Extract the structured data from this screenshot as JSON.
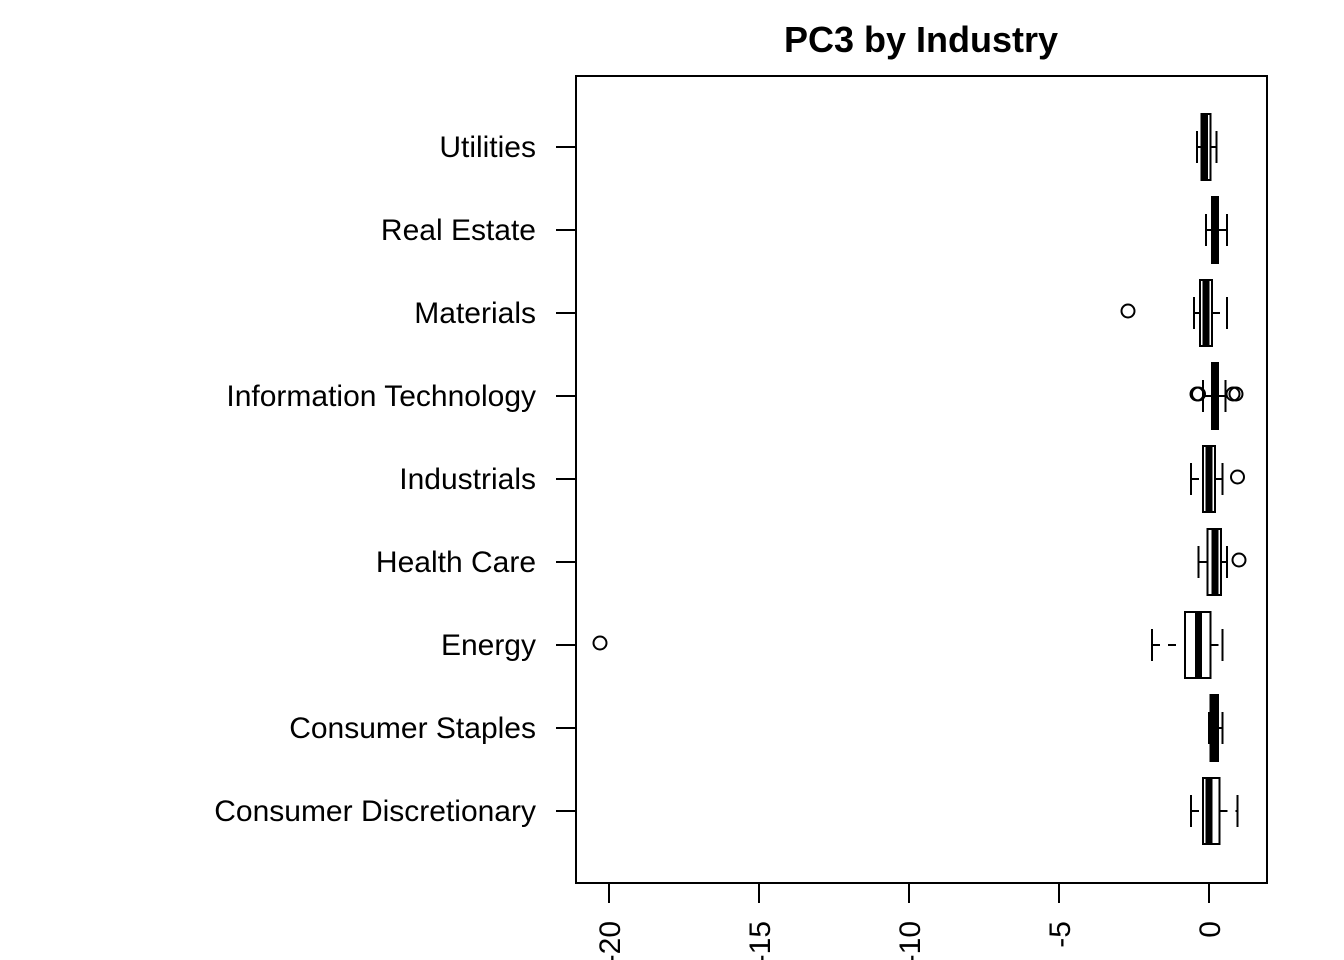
{
  "chart_data": {
    "type": "boxplot",
    "title": "PC3 by Industry",
    "xlabel": "",
    "ylabel": "",
    "orientation": "horizontal",
    "xlim": [
      -21.2,
      2.0
    ],
    "x_ticks": [
      -20,
      -15,
      -10,
      -5,
      0
    ],
    "x_tick_labels": [
      "-20",
      "-15",
      "-10",
      "-5",
      "0"
    ],
    "grid": false,
    "categories": [
      "Consumer Discretionary",
      "Consumer Staples",
      "Energy",
      "Health Care",
      "Industrials",
      "Information Technology",
      "Materials",
      "Real Estate",
      "Utilities"
    ],
    "boxes": [
      {
        "category": "Consumer Discretionary",
        "whisker_low": -0.6,
        "q1": -0.2,
        "median": 0.0,
        "q3": 0.35,
        "whisker_high": 0.95,
        "outliers": []
      },
      {
        "category": "Consumer Staples",
        "whisker_low": 0.0,
        "q1": 0.05,
        "median": 0.15,
        "q3": 0.3,
        "whisker_high": 0.45,
        "outliers": []
      },
      {
        "category": "Energy",
        "whisker_low": -1.9,
        "q1": -0.8,
        "median": -0.35,
        "q3": 0.05,
        "whisker_high": 0.45,
        "outliers": [
          -20.3
        ]
      },
      {
        "category": "Health Care",
        "whisker_low": -0.35,
        "q1": -0.05,
        "median": 0.2,
        "q3": 0.4,
        "whisker_high": 0.6,
        "outliers": [
          1.0
        ]
      },
      {
        "category": "Industrials",
        "whisker_low": -0.6,
        "q1": -0.2,
        "median": 0.0,
        "q3": 0.2,
        "whisker_high": 0.45,
        "outliers": [
          0.95
        ]
      },
      {
        "category": "Information Technology",
        "whisker_low": -0.2,
        "q1": 0.1,
        "median": 0.2,
        "q3": 0.3,
        "whisker_high": 0.55,
        "outliers": [
          -0.4,
          -0.35,
          0.8,
          0.9
        ]
      },
      {
        "category": "Materials",
        "whisker_low": -0.5,
        "q1": -0.3,
        "median": -0.1,
        "q3": 0.1,
        "whisker_high": 0.6,
        "outliers": [
          -2.7
        ]
      },
      {
        "category": "Real Estate",
        "whisker_low": -0.1,
        "q1": 0.1,
        "median": 0.2,
        "q3": 0.3,
        "whisker_high": 0.6,
        "outliers": []
      },
      {
        "category": "Utilities",
        "whisker_low": -0.4,
        "q1": -0.25,
        "median": -0.15,
        "q3": 0.05,
        "whisker_high": 0.25,
        "outliers": []
      }
    ]
  }
}
